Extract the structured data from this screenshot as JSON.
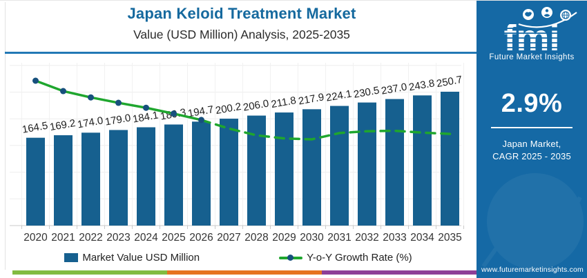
{
  "header": {
    "title": "Japan Keloid Treatment Market",
    "subtitle": "Value (USD Million) Analysis, 2025-2035"
  },
  "chart_data": {
    "type": "bar",
    "title": "Japan Keloid Treatment Market Value (USD Million) Analysis, 2025-2035",
    "categories": [
      "2020",
      "2021",
      "2022",
      "2023",
      "2024",
      "2025",
      "2026",
      "2027",
      "2028",
      "2029",
      "2030",
      "2031",
      "2032",
      "2033",
      "2034",
      "2035"
    ],
    "series": [
      {
        "name": "Market Value USD Million",
        "type": "bar",
        "values": [
          164.5,
          169.2,
          174.0,
          179.0,
          184.1,
          189.3,
          194.7,
          200.2,
          206.0,
          211.8,
          217.9,
          224.1,
          230.5,
          237.0,
          243.8,
          250.7
        ]
      },
      {
        "name": "Y-o-Y Growth Rate (%)",
        "type": "line",
        "values": [
          3.6,
          3.37,
          3.23,
          3.11,
          3.0,
          2.87,
          2.73,
          2.54,
          2.39,
          2.32,
          2.3,
          2.44,
          2.48,
          2.49,
          2.45,
          2.42
        ],
        "solid_segment_years": "2020-2026",
        "dashed_segment_years": "2026-2035"
      }
    ],
    "xlabel": "",
    "ylabel": "",
    "ylim": [
      0,
      320
    ],
    "gridlines": "faint horizontal every 50 units and vertical per category",
    "value_labels": "one decimal, tilted above each bar",
    "legend_position": "bottom center"
  },
  "legend": {
    "bar_label": "Market Value USD Million",
    "line_label": "Y-o-Y Growth Rate (%)"
  },
  "sidebar": {
    "logo_text": "fmi",
    "logo_tagline": "Future Market Insights",
    "cagr_value": "2.9%",
    "cagr_caption_line1": "Japan Market,",
    "cagr_caption_line2": "CAGR 2025 - 2035",
    "website": "www.futuremarketinsights.com"
  },
  "colors": {
    "bar_blue": "#16608F",
    "line_green": "#1FA62E",
    "dot_navy": "#17507D",
    "title_blue": "#15699E",
    "rule_blue": "#2278B5",
    "sidebar_blue": "#1569A5",
    "stripe_green": "#82BB41",
    "stripe_orange": "#E67320",
    "stripe_purple": "#8E3E97"
  }
}
